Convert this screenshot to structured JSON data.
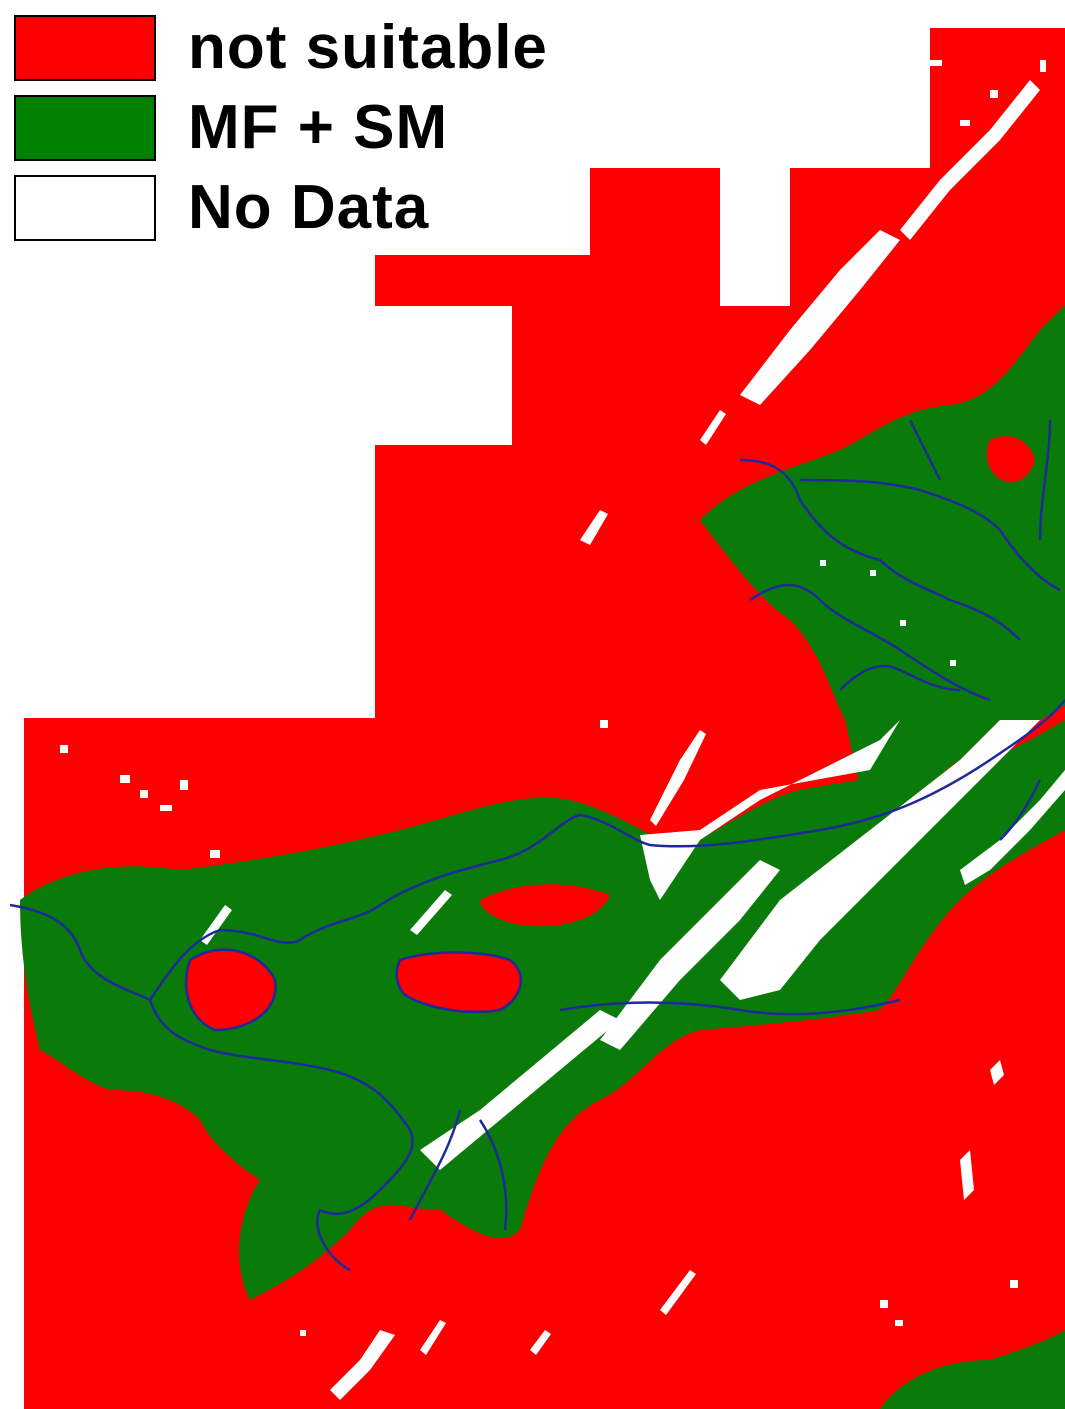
{
  "legend": {
    "items": [
      {
        "label": "not suitable",
        "color": "#ff0000"
      },
      {
        "label": "MF + SM",
        "color": "#008000"
      },
      {
        "label": "No Data",
        "color": "#ffffff"
      }
    ]
  },
  "map": {
    "colors": {
      "not_suitable": "#ff0000",
      "mf_sm": "#0a7a0a",
      "no_data": "#ffffff",
      "river": "#1e2a9a"
    }
  }
}
